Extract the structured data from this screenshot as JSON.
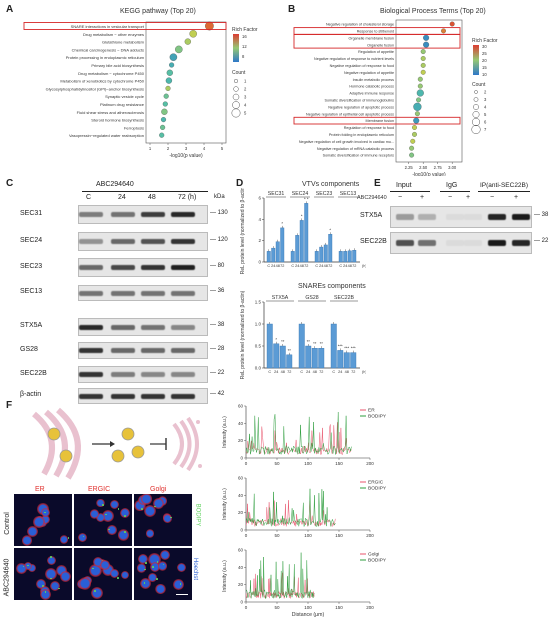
{
  "panels": {
    "a": "A",
    "b": "B",
    "c": "C",
    "d": "D",
    "e": "E",
    "f": "F"
  },
  "kegg": {
    "title": "KEGG pathway (Top 20)",
    "xlabel": "-log10(p value)",
    "x_ticks": [
      "1",
      "2",
      "3",
      "4",
      "5"
    ],
    "legend_rich": "Rich Factor",
    "legend_rich_ticks": [
      "16",
      "12",
      "8"
    ],
    "legend_count": "Count",
    "legend_count_vals": [
      "1",
      "2",
      "3",
      "4",
      "5"
    ],
    "terms": [
      "SNARE interactions in vesicular transport",
      "Drug metabolism − other enzymes",
      "Glutathione metabolism",
      "Chemical carcinogenesis − DNA adducts",
      "Protein processing in endoplasmic reticulum",
      "Primary bile acid biosynthesis",
      "Drug metabolism − cytochrome P450",
      "Metabolism of xenobiotics by cytochrome P450",
      "Glycosylphosphatidylinositol (GPI)−anchor biosynthesis",
      "Synaptic vesicle cycle",
      "Platinum drug resistance",
      "Fluid shear stress and atherosclerosis",
      "Steroid hormone biosynthesis",
      "Ferroptosis",
      "Vasopressin−regulated water reabsorption"
    ]
  },
  "bp": {
    "title": "Biological Process Terms (Top 20)",
    "xlabel": "-log10(p value)",
    "x_ticks": [
      "2.25",
      "2.50",
      "2.75",
      "3.00"
    ],
    "legend_rich": "Rich Factor",
    "legend_rich_ticks": [
      "30",
      "25",
      "20",
      "15",
      "10"
    ],
    "legend_count": "Count",
    "legend_count_vals": [
      "2",
      "3",
      "4",
      "5",
      "6",
      "7"
    ],
    "terms": [
      "Negative regulation of cholesterol storage",
      "Response to stilbenoid",
      "Organelle membrane fusion",
      "Organelle fusion",
      "Regulation of appetite",
      "Negative regulation of response to nutrient levels",
      "Negative regulation of response to food",
      "Negative regulation of appetite",
      "Insulin metabolic process",
      "Hormone catabolic process",
      "Adaptive immune response",
      "Somatic diversification of immunoglobulins",
      "Negative regulation of apoptotic process",
      "Negative regulation of epithelial cell apoptotic process",
      "Membrane fusion",
      "Regulation of response to food",
      "Protein folding in endoplasmic reticulum",
      "Negative regulation of cell growth involved in cardiac mu...",
      "Negative regulation of mRNA catabolic process",
      "Somatic diversification of immune receptors"
    ]
  },
  "wb_c": {
    "drug": "ABC294640",
    "timepoints": [
      "C",
      "24",
      "48",
      "72 (h)"
    ],
    "kda_header": "kDa",
    "bands": [
      {
        "name": "SEC31",
        "kda": "130"
      },
      {
        "name": "SEC24",
        "kda": "120"
      },
      {
        "name": "SEC23",
        "kda": "80"
      },
      {
        "name": "SEC13",
        "kda": "36"
      },
      {
        "name": "STX5A",
        "kda": "38"
      },
      {
        "name": "GS28",
        "kda": "28"
      },
      {
        "name": "SEC22B",
        "kda": "22"
      },
      {
        "name": "β-actin",
        "kda": "42"
      }
    ]
  },
  "d_top": {
    "title": "VTVs components",
    "ylabel": "ReL protein level (normalized to β-actin)",
    "groups": [
      "SEC31",
      "SEC24",
      "SEC23",
      "SEC13"
    ],
    "x_ticks": [
      "C",
      "24",
      "48",
      "72"
    ],
    "x_unit": "(h)",
    "y_ticks": [
      "0",
      "2",
      "4",
      "6"
    ],
    "sig": {
      "SEC31": [
        "",
        "",
        "*"
      ],
      "SEC24": [
        "",
        "*",
        "* *"
      ],
      "SEC23": [
        "",
        "",
        "*"
      ],
      "SEC13": [
        "",
        "",
        ""
      ]
    }
  },
  "d_bottom": {
    "title": "SNAREs components",
    "ylabel": "ReL protein level (normalized to β-actin)",
    "groups": [
      "STX5A",
      "GS28",
      "SEC22B"
    ],
    "x_ticks": [
      "C",
      "24",
      "48",
      "72"
    ],
    "x_unit": "(h)",
    "y_ticks": [
      "0.0",
      "0.5",
      "1.0",
      "1.5"
    ],
    "sig": {
      "STX5A": [
        "*",
        "**",
        "**"
      ],
      "GS28": [
        "**",
        "**",
        "**"
      ],
      "SEC22B": [
        "***",
        "***",
        "***"
      ]
    }
  },
  "chart_data": [
    {
      "type": "bar",
      "title": "VTVs components",
      "ylabel": "ReL protein level (normalized to β-actin)",
      "categories": [
        "C",
        "24",
        "48",
        "72"
      ],
      "ylim": [
        0,
        7
      ],
      "series": [
        {
          "name": "SEC31",
          "values": [
            1.0,
            1.3,
            1.9,
            3.2
          ]
        },
        {
          "name": "SEC24",
          "values": [
            1.0,
            2.5,
            3.9,
            5.5
          ]
        },
        {
          "name": "SEC23",
          "values": [
            1.0,
            1.4,
            1.6,
            2.6
          ]
        },
        {
          "name": "SEC13",
          "values": [
            1.0,
            1.0,
            1.05,
            1.1
          ]
        }
      ]
    },
    {
      "type": "bar",
      "title": "SNAREs components",
      "ylabel": "ReL protein level (normalized to β-actin)",
      "categories": [
        "C",
        "24",
        "48",
        "72"
      ],
      "ylim": [
        0,
        1.5
      ],
      "series": [
        {
          "name": "STX5A",
          "values": [
            1.0,
            0.55,
            0.5,
            0.3
          ]
        },
        {
          "name": "GS28",
          "values": [
            1.0,
            0.5,
            0.45,
            0.45
          ]
        },
        {
          "name": "SEC22B",
          "values": [
            1.0,
            0.4,
            0.35,
            0.35
          ]
        }
      ]
    },
    {
      "type": "line",
      "xlabel": "",
      "ylabel": "Intensity (a.u.)",
      "x_ticks": [
        "0",
        "50",
        "100",
        "150",
        "200"
      ],
      "ylim": [
        0,
        60
      ],
      "series": [
        {
          "name": "ER"
        },
        {
          "name": "BODIPY"
        }
      ]
    },
    {
      "type": "line",
      "ylabel": "Intensity (a.u.)",
      "x_ticks": [
        "0",
        "50",
        "100",
        "150",
        "200"
      ],
      "ylim": [
        0,
        60
      ],
      "series": [
        {
          "name": "ERGIC"
        },
        {
          "name": "BODIPY"
        }
      ]
    },
    {
      "type": "line",
      "xlabel": "Distance (μm)",
      "ylabel": "Intensity (a.u.)",
      "x_ticks": [
        "0",
        "50",
        "100",
        "150",
        "200"
      ],
      "ylim": [
        0,
        60
      ],
      "series": [
        {
          "name": "Golgi"
        },
        {
          "name": "BODIPY"
        }
      ]
    }
  ],
  "ip_e": {
    "input": "Input",
    "igg": "IgG",
    "ip": "IP(anti-SEC22B)",
    "drug": "ABC294640",
    "signs": [
      "−",
      "+",
      "−",
      "+",
      "−",
      "+"
    ],
    "bands": [
      {
        "name": "STX5A",
        "kda": "38"
      },
      {
        "name": "SEC22B",
        "kda": "22"
      }
    ]
  },
  "f": {
    "cols": [
      "ER",
      "ERGIC",
      "Golgi"
    ],
    "rows": [
      "Control",
      "ABC294640"
    ],
    "side_bodipy": "BODIPY",
    "side_hoechst": "Hoechst",
    "plot_ylabel": "Intensity (a.u.)",
    "plot_xlabel": "Distance (μm)",
    "x_ticks": [
      "0",
      "50",
      "100",
      "150",
      "200"
    ],
    "y_ticks": [
      "0",
      "20",
      "40",
      "60"
    ],
    "legends": [
      [
        "ER",
        "BODIPY"
      ],
      [
        "ERGIC",
        "BODIPY"
      ],
      [
        "Golgi",
        "BODIPY"
      ]
    ]
  },
  "colors": {
    "bar": "#5b9bd5",
    "highlight_box": "#d62728",
    "red_line": "#e8536b",
    "green_line": "#2e9e3e",
    "micro_red": "#e0322f",
    "micro_blue": "#2a5fd6",
    "micro_green": "#5fd25f"
  }
}
